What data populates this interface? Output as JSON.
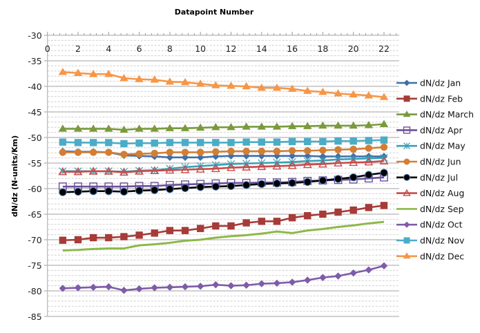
{
  "chart_data": {
    "type": "line",
    "title": "Datapoint  Number",
    "xlabel": "Datapoint  Number",
    "ylabel": "dN/dz (N-units/Km)",
    "xlim": [
      0,
      23
    ],
    "ylim": [
      -85,
      -30
    ],
    "x_ticks": [
      "0",
      "2",
      "4",
      "6",
      "8",
      "10",
      "12",
      "14",
      "16",
      "18",
      "20",
      "22"
    ],
    "y_ticks": [
      "-30",
      "-35",
      "-40",
      "-45",
      "-50",
      "-55",
      "-60",
      "-65",
      "-70",
      "-75",
      "-80",
      "-85"
    ],
    "grid": true,
    "legend_position": "right",
    "x": [
      1,
      2,
      3,
      4,
      5,
      6,
      7,
      8,
      9,
      10,
      11,
      12,
      13,
      14,
      15,
      16,
      17,
      18,
      19,
      20,
      21,
      22
    ],
    "series": [
      {
        "name": "dN/dz Jan",
        "color": "#3F6FA8",
        "marker": "diamond",
        "values": [
          -52.7,
          -52.8,
          -52.8,
          -52.9,
          -53.5,
          -53.6,
          -53.7,
          -53.9,
          -53.9,
          -53.9,
          -53.7,
          -53.6,
          -53.6,
          -53.6,
          -53.6,
          -53.6,
          -53.6,
          -53.7,
          -53.7,
          -53.7,
          -53.7,
          -53.7
        ]
      },
      {
        "name": "dN/dz Feb",
        "color": "#A63B38",
        "marker": "square",
        "values": [
          -70.1,
          -70.0,
          -69.6,
          -69.6,
          -69.4,
          -69.1,
          -68.7,
          -68.2,
          -68.2,
          -67.8,
          -67.3,
          -67.3,
          -66.7,
          -66.4,
          -66.4,
          -65.7,
          -65.3,
          -65.0,
          -64.6,
          -64.2,
          -63.7,
          -63.3
        ]
      },
      {
        "name": "dN/dz March",
        "color": "#7A9A3C",
        "marker": "triangle",
        "values": [
          -48.3,
          -48.3,
          -48.3,
          -48.3,
          -48.5,
          -48.3,
          -48.3,
          -48.2,
          -48.2,
          -48.1,
          -48.0,
          -48.0,
          -47.9,
          -47.9,
          -47.9,
          -47.8,
          -47.8,
          -47.7,
          -47.7,
          -47.7,
          -47.6,
          -47.4
        ]
      },
      {
        "name": "dN/dz Apr",
        "color": "#6D4F9A",
        "marker": "hollow-square",
        "values": [
          -59.6,
          -59.6,
          -59.6,
          -59.6,
          -59.6,
          -59.5,
          -59.5,
          -59.3,
          -59.2,
          -59.1,
          -59.0,
          -58.9,
          -58.9,
          -58.8,
          -58.8,
          -58.7,
          -58.5,
          -58.4,
          -58.3,
          -58.2,
          -58.0,
          -57.8
        ]
      },
      {
        "name": "dN/dz May",
        "color": "#3BA0B8",
        "marker": "asterisk",
        "values": [
          -56.6,
          -56.6,
          -56.6,
          -56.6,
          -56.7,
          -56.5,
          -56.4,
          -56.1,
          -55.8,
          -55.6,
          -55.4,
          -55.2,
          -55.1,
          -55.0,
          -54.9,
          -54.8,
          -54.6,
          -54.5,
          -54.3,
          -54.2,
          -54.1,
          -54.0
        ]
      },
      {
        "name": "dN/dz Jun",
        "color": "#D27E35",
        "marker": "circle",
        "values": [
          -52.9,
          -52.9,
          -52.9,
          -52.9,
          -53.3,
          -53.2,
          -53.1,
          -52.9,
          -52.9,
          -52.9,
          -52.8,
          -52.7,
          -52.7,
          -52.7,
          -52.7,
          -52.6,
          -52.6,
          -52.5,
          -52.4,
          -52.3,
          -52.1,
          -51.9
        ]
      },
      {
        "name": "dN/dz Jul",
        "color": "#000000",
        "marker": "circle-dark",
        "values": [
          -60.7,
          -60.6,
          -60.5,
          -60.5,
          -60.6,
          -60.4,
          -60.3,
          -60.1,
          -59.9,
          -59.7,
          -59.6,
          -59.5,
          -59.3,
          -59.1,
          -59.0,
          -58.9,
          -58.7,
          -58.4,
          -58.1,
          -57.8,
          -57.3,
          -56.9
        ]
      },
      {
        "name": "dN/dz Aug",
        "color": "#C94A48",
        "marker": "hollow-triangle",
        "values": [
          -56.7,
          -56.7,
          -56.6,
          -56.6,
          -56.8,
          -56.6,
          -56.5,
          -56.4,
          -56.3,
          -56.2,
          -56.1,
          -55.9,
          -55.8,
          -55.7,
          -55.6,
          -55.5,
          -55.3,
          -55.2,
          -55.0,
          -54.9,
          -54.8,
          -54.6
        ]
      },
      {
        "name": "dN/dz Sep",
        "color": "#8DB848",
        "marker": "none",
        "values": [
          -72.1,
          -72.0,
          -71.8,
          -71.7,
          -71.7,
          -71.1,
          -70.9,
          -70.6,
          -70.2,
          -70.0,
          -69.6,
          -69.3,
          -69.1,
          -68.8,
          -68.4,
          -68.7,
          -68.2,
          -67.9,
          -67.5,
          -67.2,
          -66.8,
          -66.5
        ]
      },
      {
        "name": "dN/dz Oct",
        "color": "#7E5CA8",
        "marker": "diamond",
        "values": [
          -79.5,
          -79.4,
          -79.3,
          -79.2,
          -79.9,
          -79.6,
          -79.4,
          -79.3,
          -79.2,
          -79.1,
          -78.8,
          -79.0,
          -78.9,
          -78.6,
          -78.5,
          -78.3,
          -77.9,
          -77.4,
          -77.1,
          -76.5,
          -75.9,
          -75.1
        ]
      },
      {
        "name": "dN/dz Nov",
        "color": "#4BACC6",
        "marker": "square",
        "values": [
          -50.9,
          -51.0,
          -51.0,
          -51.0,
          -51.2,
          -51.1,
          -51.1,
          -51.0,
          -51.0,
          -51.0,
          -51.0,
          -51.0,
          -50.9,
          -50.9,
          -50.9,
          -50.8,
          -50.8,
          -50.8,
          -50.7,
          -50.7,
          -50.6,
          -50.5
        ]
      },
      {
        "name": "dN/dz Dec",
        "color": "#F79646",
        "marker": "triangle",
        "values": [
          -37.2,
          -37.4,
          -37.6,
          -37.6,
          -38.4,
          -38.6,
          -38.7,
          -39.1,
          -39.2,
          -39.5,
          -39.8,
          -39.9,
          -40.0,
          -40.3,
          -40.3,
          -40.5,
          -40.9,
          -41.1,
          -41.4,
          -41.6,
          -41.8,
          -42.1
        ]
      }
    ]
  }
}
